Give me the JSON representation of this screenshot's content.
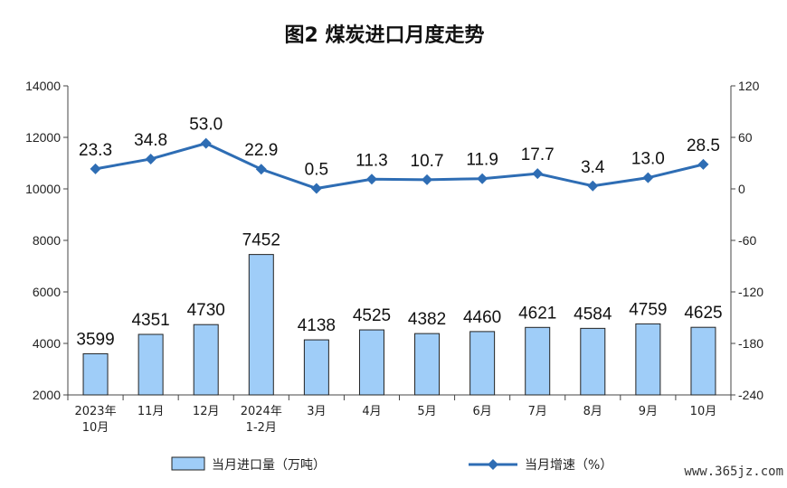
{
  "title": "图2  煤炭进口月度走势",
  "watermark": "www.365jz.com",
  "colors": {
    "bar_fill": "#9fcdf8",
    "bar_stroke": "#222222",
    "line": "#2e6db4",
    "axis": "#444444"
  },
  "chart_data": {
    "type": "bar+line",
    "categories": [
      [
        "2023年",
        "10月"
      ],
      [
        "11月"
      ],
      [
        "12月"
      ],
      [
        "2024年",
        "1-2月"
      ],
      [
        "3月"
      ],
      [
        "4月"
      ],
      [
        "5月"
      ],
      [
        "6月"
      ],
      [
        "7月"
      ],
      [
        "8月"
      ],
      [
        "9月"
      ],
      [
        "10月"
      ]
    ],
    "series": [
      {
        "name": "当月进口量（万吨）",
        "type": "bar",
        "axis": "left",
        "values": [
          3599,
          4351,
          4730,
          7452,
          4138,
          4525,
          4382,
          4460,
          4621,
          4584,
          4759,
          4625
        ],
        "labels": [
          "3599",
          "4351",
          "4730",
          "7452",
          "4138",
          "4525",
          "4382",
          "4460",
          "4621",
          "4584",
          "4759",
          "4625"
        ]
      },
      {
        "name": "当月增速（%）",
        "type": "line",
        "axis": "right",
        "values": [
          23.3,
          34.8,
          53.0,
          22.9,
          0.5,
          11.3,
          10.7,
          11.9,
          17.7,
          3.4,
          13.0,
          28.5
        ],
        "labels": [
          "23.3",
          "34.8",
          "53.0",
          "22.9",
          "0.5",
          "11.3",
          "10.7",
          "11.9",
          "17.7",
          "3.4",
          "13.0",
          "28.5"
        ]
      }
    ],
    "y_left": {
      "ylim": [
        2000,
        14000
      ],
      "ticks": [
        "2000",
        "4000",
        "6000",
        "8000",
        "10000",
        "12000",
        "14000"
      ]
    },
    "y_right": {
      "ylim": [
        -240,
        120
      ],
      "ticks": [
        "-240",
        "-180",
        "-120",
        "-60",
        "0",
        "60",
        "120"
      ]
    },
    "grid": false,
    "legend": "bottom"
  }
}
